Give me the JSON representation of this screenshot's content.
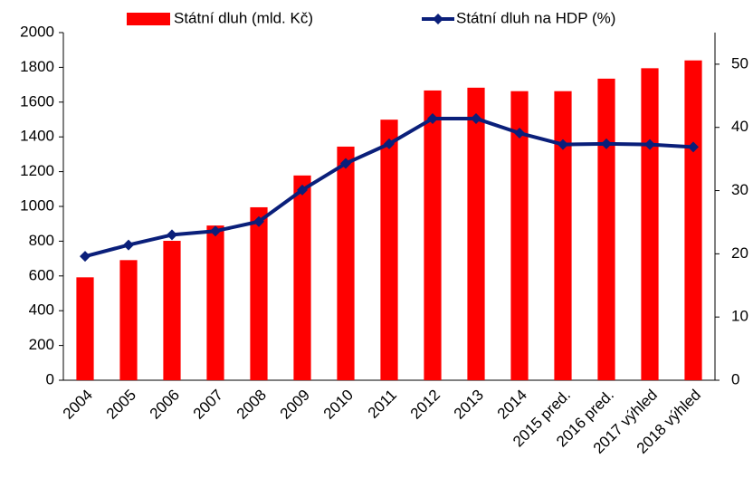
{
  "chart_data": {
    "type": "bar-line",
    "categories": [
      "2004",
      "2005",
      "2006",
      "2007",
      "2008",
      "2009",
      "2010",
      "2011",
      "2012",
      "2013",
      "2014",
      "2015 pred.",
      "2016 pred.",
      "2017 výhled",
      "2018 výhled"
    ],
    "series": [
      {
        "name": "Státní dluh (mld. Kč)",
        "type": "bar",
        "color": "#ff0000",
        "values": [
          592,
          691,
          802,
          890,
          995,
          1178,
          1344,
          1499,
          1667,
          1683,
          1663,
          1663,
          1735,
          1795,
          1840
        ]
      },
      {
        "name": "Státní dluh na HDP (%)",
        "type": "line",
        "color": "#0a1f7a",
        "axis": "y2",
        "values": [
          19.6,
          21.4,
          23.0,
          23.6,
          25.1,
          30.1,
          34.3,
          37.4,
          41.4,
          41.4,
          39.1,
          37.3,
          37.4,
          37.3,
          36.9
        ]
      }
    ],
    "ylim": [
      0,
      2000
    ],
    "yticks": [
      0,
      200,
      400,
      600,
      800,
      1000,
      1200,
      1400,
      1600,
      1800,
      2000
    ],
    "y2lim": [
      0,
      55
    ],
    "y2ticks": [
      0,
      10,
      20,
      30,
      40,
      50
    ],
    "grid": false,
    "legend": "top"
  }
}
